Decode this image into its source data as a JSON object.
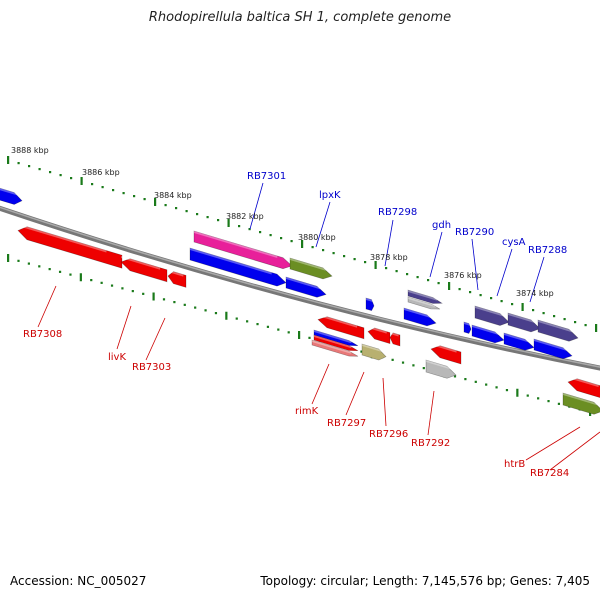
{
  "title": "Rhodopirellula baltica SH 1, complete genome",
  "footer": {
    "accession": "Accession: NC_005027",
    "info": "Topology: circular; Length: 7,145,576 bp; Genes: 7,405"
  },
  "colors": {
    "backbone": "#808080",
    "tick": "#1a7a1a",
    "forward_label": "#0000cc",
    "reverse_label": "#cc0000"
  },
  "scale_labels": [
    "3888 kbp",
    "3886 kbp",
    "3884 kbp",
    "3882 kbp",
    "3880 kbp",
    "3878 kbp",
    "3876 kbp",
    "3874 kbp"
  ],
  "forward_gene_labels": [
    "RB7301",
    "lpxK",
    "RB7298",
    "gdh",
    "RB7290",
    "cysA",
    "RB7288"
  ],
  "reverse_gene_labels": [
    "RB7308",
    "livK",
    "RB7303",
    "rimK",
    "RB7297",
    "RB7296",
    "RB7292",
    "htrB",
    "RB7284"
  ],
  "genes": [
    {
      "strand": "forward",
      "color": "#0000ee"
    },
    {
      "strand": "forward",
      "color": "#e8209a"
    },
    {
      "strand": "forward",
      "color": "#6b8e23"
    },
    {
      "strand": "forward",
      "color": "#4a3f8c"
    },
    {
      "strand": "reverse",
      "color": "#ee0000"
    },
    {
      "strand": "reverse",
      "color": "#e87878"
    },
    {
      "strand": "reverse",
      "color": "#b8b070"
    },
    {
      "strand": "reverse",
      "color": "#b8b8b8"
    },
    {
      "strand": "reverse",
      "color": "#6b8e23"
    }
  ]
}
